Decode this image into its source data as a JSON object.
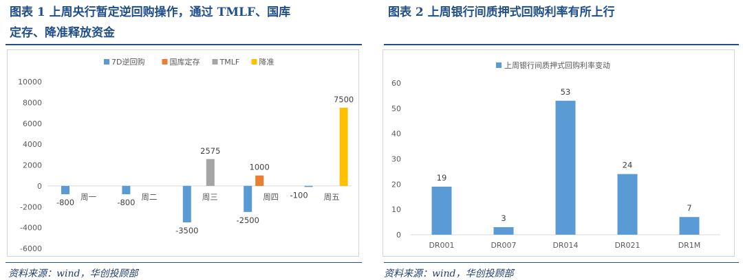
{
  "chart1": {
    "title_line1": "图表 1 上周央行暂定逆回购操作，通过 TMLF、国库",
    "title_line2": "定存、降准释放资金",
    "source": "资料来源：wind，华创投顾部",
    "colors": {
      "7D逆回购": "#5b9bd5",
      "国库定存": "#ed7d31",
      "TMLF": "#a5a5a5",
      "降准": "#ffc000"
    }
  },
  "chart2": {
    "title": "图表 2 上周银行间质押式回购利率有所上行",
    "source": "资料来源：wind，华创投顾部",
    "color": "#5b9bd5"
  },
  "chart_data": [
    {
      "type": "bar",
      "categories": [
        "周一",
        "周二",
        "周三",
        "周四",
        "周五"
      ],
      "series": [
        {
          "name": "7D逆回购",
          "values": [
            -800,
            -800,
            -3500,
            -2500,
            -100
          ]
        },
        {
          "name": "国库定存",
          "values": [
            null,
            null,
            null,
            1000,
            null
          ]
        },
        {
          "name": "TMLF",
          "values": [
            null,
            null,
            2575,
            null,
            null
          ]
        },
        {
          "name": "降准",
          "values": [
            null,
            null,
            null,
            null,
            7500
          ]
        }
      ],
      "ylim": [
        -6000,
        10000
      ],
      "yticks": [
        10000,
        8000,
        6000,
        4000,
        2000,
        0,
        -2000,
        -4000,
        -6000
      ],
      "legend": "top",
      "grid": false
    },
    {
      "type": "bar",
      "categories": [
        "DR001",
        "DR007",
        "DR014",
        "DR021",
        "DR1M"
      ],
      "series": [
        {
          "name": "上周银行间质押式回购利率变动",
          "values": [
            19,
            3,
            53,
            24,
            7
          ]
        }
      ],
      "ylim": [
        0,
        60
      ],
      "yticks": [
        60,
        50,
        40,
        30,
        20,
        10,
        0
      ],
      "legend": "top",
      "grid": false
    }
  ]
}
